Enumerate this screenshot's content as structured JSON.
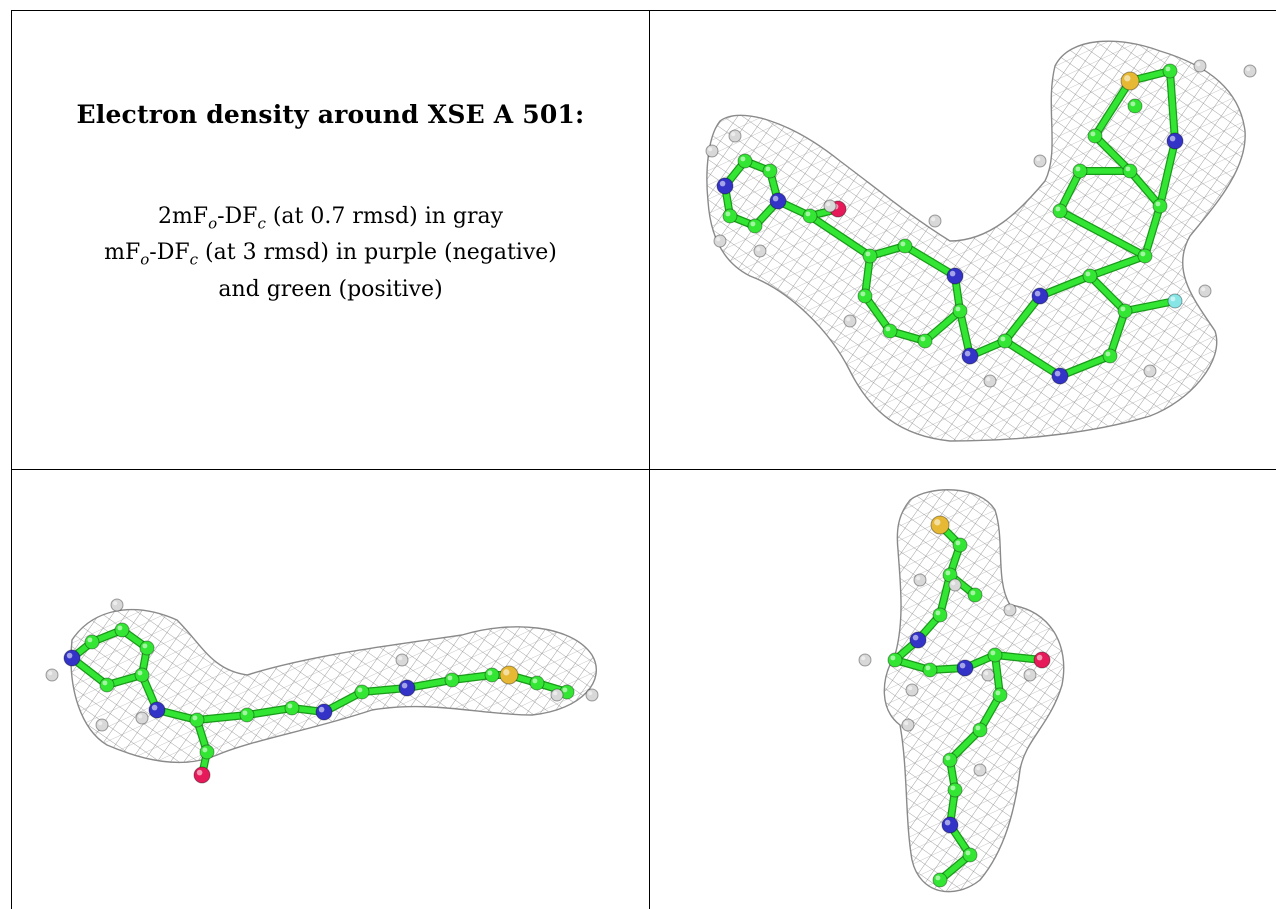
{
  "legend": {
    "title": "Electron density around XSE A 501:",
    "line1": {
      "a": "2mF",
      "a_sub": "o",
      "b": "-DF",
      "b_sub": "c",
      "c": " (at 0.7 rmsd) in gray"
    },
    "line2": {
      "a": "mF",
      "a_sub": "o",
      "b": "-DF",
      "b_sub": "c",
      "c": " (at 3 rmsd) in purple (negative)"
    },
    "line3": "and green (positive)"
  },
  "colors": {
    "mesh": "#8a8a8a",
    "carbon": "#33e633",
    "nitrogen": "#3333c8",
    "oxygen": "#e6195a",
    "sulfur": "#e6b833",
    "fluorine": "#88e6e6",
    "hydrogen": "#d8d8d8"
  },
  "views": [
    {
      "name": "view-top-right"
    },
    {
      "name": "view-bottom-left"
    },
    {
      "name": "view-bottom-right"
    }
  ]
}
